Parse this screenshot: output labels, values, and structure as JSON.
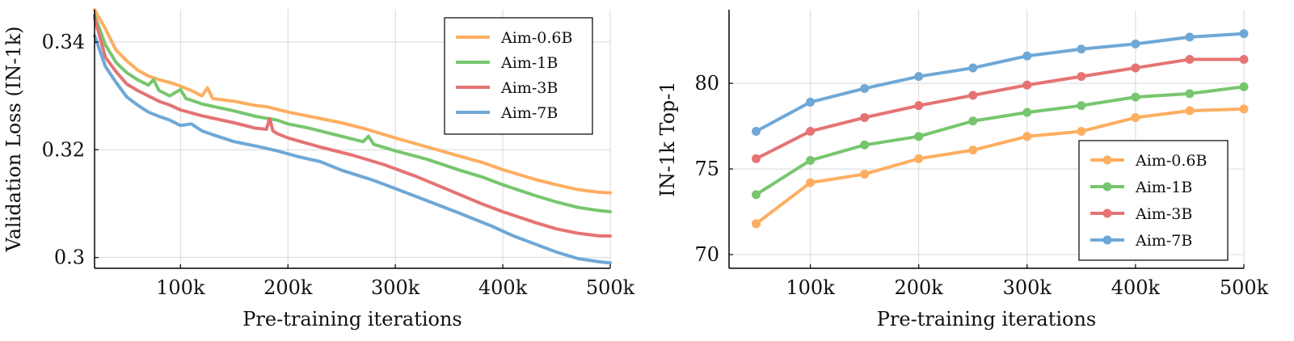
{
  "chart_data": [
    {
      "type": "line",
      "xlabel": "Pre-training iterations",
      "ylabel": "Validation Loss (IN-1k)",
      "xlim": [
        20000,
        500000
      ],
      "ylim": [
        0.298,
        0.346
      ],
      "x_ticks": [
        100000,
        200000,
        300000,
        400000,
        500000
      ],
      "x_tick_labels": [
        "100k",
        "200k",
        "300k",
        "400k",
        "500k"
      ],
      "y_ticks": [
        0.3,
        0.32,
        0.34
      ],
      "y_tick_labels": [
        "0.3",
        "0.32",
        "0.34"
      ],
      "grid": true,
      "legend_position": "top-right",
      "series": [
        {
          "name": "Aim-0.6B",
          "color": "#fdae61",
          "x": [
            20000,
            30000,
            40000,
            50000,
            60000,
            70000,
            80000,
            90000,
            100000,
            110000,
            120000,
            125000,
            130000,
            150000,
            170000,
            180000,
            200000,
            220000,
            250000,
            270000,
            300000,
            330000,
            360000,
            380000,
            400000,
            430000,
            450000,
            470000,
            490000,
            500000
          ],
          "values": [
            0.346,
            0.3425,
            0.3385,
            0.3365,
            0.3348,
            0.3337,
            0.333,
            0.3325,
            0.3318,
            0.331,
            0.33,
            0.3315,
            0.3295,
            0.329,
            0.3282,
            0.328,
            0.327,
            0.3262,
            0.325,
            0.324,
            0.3222,
            0.3205,
            0.3188,
            0.3177,
            0.3163,
            0.3145,
            0.3135,
            0.3126,
            0.3121,
            0.312
          ]
        },
        {
          "name": "Aim-1B",
          "color": "#77c66e",
          "x": [
            20000,
            30000,
            40000,
            50000,
            60000,
            70000,
            75000,
            80000,
            90000,
            100000,
            105000,
            110000,
            120000,
            150000,
            170000,
            190000,
            200000,
            220000,
            250000,
            270000,
            275000,
            280000,
            300000,
            330000,
            360000,
            380000,
            400000,
            430000,
            450000,
            470000,
            490000,
            500000
          ],
          "values": [
            0.345,
            0.3395,
            0.3362,
            0.3343,
            0.333,
            0.332,
            0.333,
            0.331,
            0.33,
            0.3312,
            0.3295,
            0.3292,
            0.3285,
            0.3272,
            0.3262,
            0.3255,
            0.3248,
            0.324,
            0.3225,
            0.3215,
            0.3225,
            0.321,
            0.3198,
            0.3182,
            0.3162,
            0.315,
            0.3135,
            0.3115,
            0.3103,
            0.3093,
            0.3087,
            0.3085
          ]
        },
        {
          "name": "Aim-3B",
          "color": "#e57373",
          "x": [
            20000,
            30000,
            40000,
            50000,
            60000,
            70000,
            80000,
            90000,
            100000,
            120000,
            150000,
            170000,
            180000,
            183000,
            186000,
            190000,
            200000,
            230000,
            260000,
            290000,
            320000,
            350000,
            380000,
            400000,
            430000,
            450000,
            470000,
            490000,
            500000
          ],
          "values": [
            0.3445,
            0.3372,
            0.3345,
            0.3322,
            0.331,
            0.33,
            0.329,
            0.3283,
            0.3274,
            0.3263,
            0.325,
            0.324,
            0.3238,
            0.3258,
            0.3235,
            0.323,
            0.3222,
            0.3205,
            0.319,
            0.3172,
            0.315,
            0.3125,
            0.31,
            0.3085,
            0.3065,
            0.3053,
            0.3045,
            0.304,
            0.304
          ]
        },
        {
          "name": "Aim-7B",
          "color": "#6fa8d6",
          "x": [
            20000,
            30000,
            40000,
            50000,
            60000,
            70000,
            80000,
            90000,
            100000,
            110000,
            120000,
            130000,
            150000,
            170000,
            190000,
            210000,
            230000,
            250000,
            280000,
            300000,
            330000,
            360000,
            390000,
            410000,
            430000,
            450000,
            470000,
            490000,
            500000
          ],
          "values": [
            0.3412,
            0.3355,
            0.3325,
            0.3298,
            0.3283,
            0.327,
            0.3262,
            0.3255,
            0.3245,
            0.3248,
            0.3235,
            0.3228,
            0.3215,
            0.3207,
            0.3198,
            0.3187,
            0.3178,
            0.3162,
            0.3143,
            0.3128,
            0.3105,
            0.3082,
            0.3058,
            0.304,
            0.3025,
            0.301,
            0.2998,
            0.2992,
            0.299
          ]
        }
      ]
    },
    {
      "type": "line",
      "xlabel": "Pre-training iterations",
      "ylabel": "IN-1k Top-1",
      "xlim": [
        25000,
        500000
      ],
      "ylim": [
        69.2,
        84.3
      ],
      "x_ticks": [
        100000,
        200000,
        300000,
        400000,
        500000
      ],
      "x_tick_labels": [
        "100k",
        "200k",
        "300k",
        "400k",
        "500k"
      ],
      "y_ticks": [
        70,
        75,
        80
      ],
      "y_tick_labels": [
        "70",
        "75",
        "80"
      ],
      "grid": true,
      "legend_position": "bottom-right",
      "markers": true,
      "series": [
        {
          "name": "Aim-0.6B",
          "color": "#fdae61",
          "x": [
            50000,
            100000,
            150000,
            200000,
            250000,
            300000,
            350000,
            400000,
            450000,
            500000
          ],
          "values": [
            71.8,
            74.2,
            74.7,
            75.6,
            76.1,
            76.9,
            77.2,
            78.0,
            78.4,
            78.5
          ]
        },
        {
          "name": "Aim-1B",
          "color": "#77c66e",
          "x": [
            50000,
            100000,
            150000,
            200000,
            250000,
            300000,
            350000,
            400000,
            450000,
            500000
          ],
          "values": [
            73.5,
            75.5,
            76.4,
            76.9,
            77.8,
            78.3,
            78.7,
            79.2,
            79.4,
            79.8
          ]
        },
        {
          "name": "Aim-3B",
          "color": "#e57373",
          "x": [
            50000,
            100000,
            150000,
            200000,
            250000,
            300000,
            350000,
            400000,
            450000,
            500000
          ],
          "values": [
            75.6,
            77.2,
            78.0,
            78.7,
            79.3,
            79.9,
            80.4,
            80.9,
            81.4,
            81.4
          ]
        },
        {
          "name": "Aim-7B",
          "color": "#6fa8d6",
          "x": [
            50000,
            100000,
            150000,
            200000,
            250000,
            300000,
            350000,
            400000,
            450000,
            500000
          ],
          "values": [
            77.2,
            78.9,
            79.7,
            80.4,
            80.9,
            81.6,
            82.0,
            82.3,
            82.7,
            82.9
          ]
        }
      ]
    }
  ]
}
